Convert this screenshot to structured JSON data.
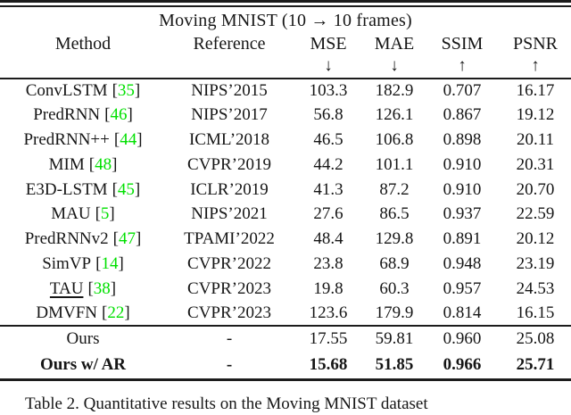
{
  "table": {
    "title": "Moving MNIST (10 → 10 frames)",
    "columns": [
      {
        "label": "Method",
        "arrow": ""
      },
      {
        "label": "Reference",
        "arrow": ""
      },
      {
        "label": "MSE",
        "arrow": "↓"
      },
      {
        "label": "MAE",
        "arrow": "↓"
      },
      {
        "label": "SSIM",
        "arrow": "↑"
      },
      {
        "label": "PSNR",
        "arrow": "↑"
      }
    ],
    "cite_brackets": [
      "[",
      "]"
    ],
    "rows": [
      {
        "method": "ConvLSTM",
        "cite": "35",
        "reference": "NIPS’2015",
        "mse": "103.3",
        "mae": "182.9",
        "ssim": "0.707",
        "psnr": "16.17"
      },
      {
        "method": "PredRNN",
        "cite": "46",
        "reference": "NIPS’2017",
        "mse": "56.8",
        "mae": "126.1",
        "ssim": "0.867",
        "psnr": "19.12"
      },
      {
        "method": "PredRNN++",
        "cite": "44",
        "reference": "ICML’2018",
        "mse": "46.5",
        "mae": "106.8",
        "ssim": "0.898",
        "psnr": "20.11"
      },
      {
        "method": "MIM",
        "cite": "48",
        "reference": "CVPR’2019",
        "mse": "44.2",
        "mae": "101.1",
        "ssim": "0.910",
        "psnr": "20.31"
      },
      {
        "method": "E3D-LSTM",
        "cite": "45",
        "reference": "ICLR’2019",
        "mse": "41.3",
        "mae": "87.2",
        "ssim": "0.910",
        "psnr": "20.70"
      },
      {
        "method": "MAU",
        "cite": "5",
        "reference": "NIPS’2021",
        "mse": "27.6",
        "mae": "86.5",
        "ssim": "0.937",
        "psnr": "22.59"
      },
      {
        "method": "PredRNNv2",
        "cite": "47",
        "reference": "TPAMI’2022",
        "mse": "48.4",
        "mae": "129.8",
        "ssim": "0.891",
        "psnr": "20.12"
      },
      {
        "method": "SimVP",
        "cite": "14",
        "reference": "CVPR’2022",
        "mse": "23.8",
        "mae": "68.9",
        "ssim": "0.948",
        "psnr": "23.19"
      },
      {
        "method": "TAU",
        "cite": "38",
        "reference": "CVPR’2023",
        "mse": "19.8",
        "mae": "60.3",
        "ssim": "0.957",
        "psnr": "24.53",
        "underline_method": true
      },
      {
        "method": "DMVFN",
        "cite": "22",
        "reference": "CVPR’2023",
        "mse": "123.6",
        "mae": "179.9",
        "ssim": "0.814",
        "psnr": "16.15"
      },
      {
        "method": "Ours",
        "cite": "",
        "reference": "-",
        "mse": "17.55",
        "mae": "59.81",
        "ssim": "0.960",
        "psnr": "25.08",
        "separator_above": true
      },
      {
        "method": "Ours w/ AR",
        "cite": "",
        "reference": "-",
        "mse": "15.68",
        "mae": "51.85",
        "ssim": "0.966",
        "psnr": "25.71",
        "bold": true
      }
    ]
  },
  "caption": "Table 2. Quantitative results on the Moving MNIST dataset",
  "colors": {
    "citation_green": "#00e000",
    "text": "#161616",
    "rule": "#1c1c1c"
  }
}
